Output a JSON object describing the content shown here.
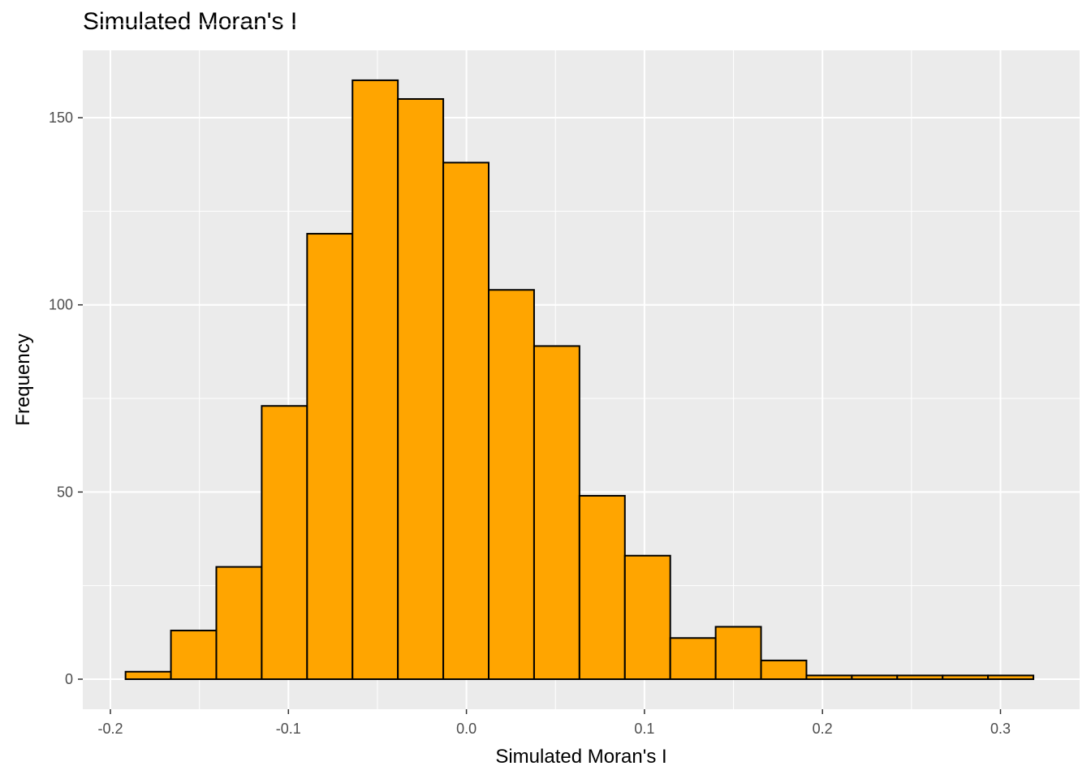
{
  "chart_data": {
    "type": "bar",
    "title": "Simulated Moran's I",
    "xlabel": "Simulated Moran's I",
    "ylabel": "Frequency",
    "xlim": [
      -0.2,
      0.33
    ],
    "ylim": [
      -8,
      165
    ],
    "x_ticks": [
      -0.2,
      -0.1,
      0.0,
      0.1,
      0.2,
      0.3
    ],
    "x_tick_labels": [
      "-0.2",
      "-0.1",
      "0.0",
      "0.1",
      "0.2",
      "0.3"
    ],
    "y_ticks": [
      0,
      50,
      100,
      150
    ],
    "y_tick_labels": [
      "0",
      "50",
      "100",
      "150"
    ],
    "bin_width": 0.0255,
    "bins": [
      {
        "x_start": -0.1915,
        "count": 2
      },
      {
        "x_start": -0.166,
        "count": 13
      },
      {
        "x_start": -0.1405,
        "count": 30
      },
      {
        "x_start": -0.115,
        "count": 73
      },
      {
        "x_start": -0.0895,
        "count": 119
      },
      {
        "x_start": -0.064,
        "count": 160
      },
      {
        "x_start": -0.0385,
        "count": 155
      },
      {
        "x_start": -0.013,
        "count": 138
      },
      {
        "x_start": 0.0125,
        "count": 104
      },
      {
        "x_start": 0.038,
        "count": 89
      },
      {
        "x_start": 0.0635,
        "count": 49
      },
      {
        "x_start": 0.089,
        "count": 33
      },
      {
        "x_start": 0.1145,
        "count": 11
      },
      {
        "x_start": 0.14,
        "count": 14
      },
      {
        "x_start": 0.1655,
        "count": 5
      },
      {
        "x_start": 0.191,
        "count": 1
      },
      {
        "x_start": 0.2165,
        "count": 1
      },
      {
        "x_start": 0.242,
        "count": 1
      },
      {
        "x_start": 0.2675,
        "count": 1
      },
      {
        "x_start": 0.293,
        "count": 1
      }
    ],
    "grid": true,
    "legend": false
  },
  "colors": {
    "bar_fill": "#FFA500",
    "bar_stroke": "#000000",
    "panel_background": "#EBEBEB",
    "grid_major": "#FFFFFF",
    "tick_text": "#4D4D4D"
  }
}
